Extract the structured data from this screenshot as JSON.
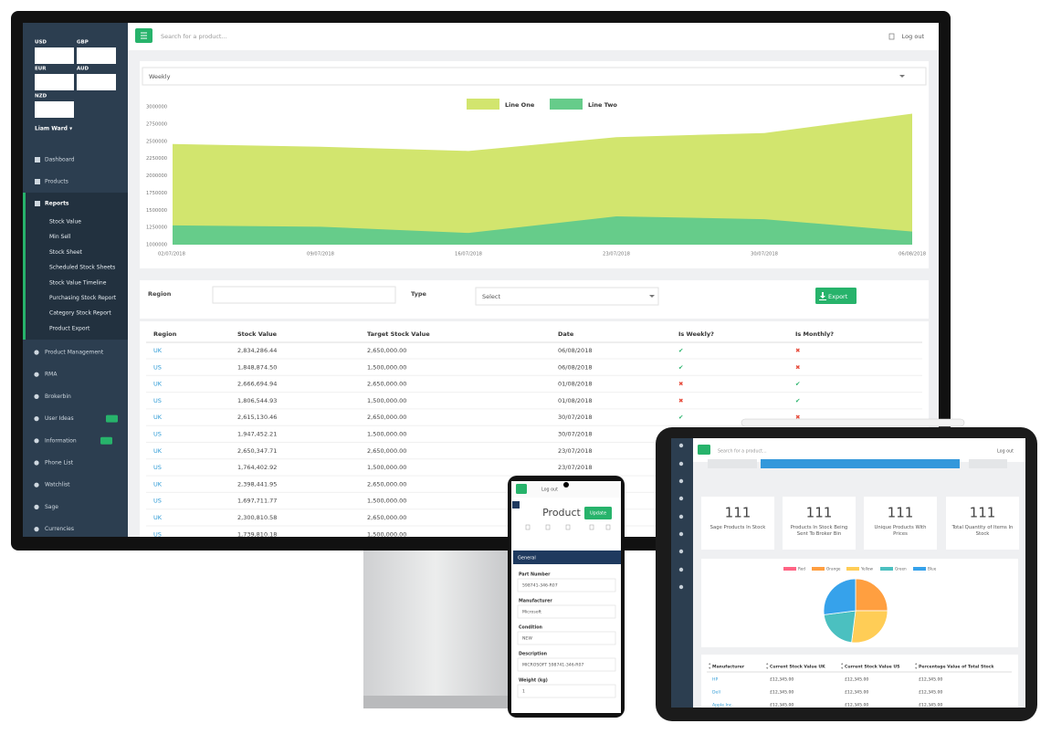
{
  "desktop": {
    "currencies": [
      "USD",
      "GBP",
      "EUR",
      "AUD",
      "NZD"
    ],
    "user": "Liam Ward ▾",
    "menu": [
      "Dashboard",
      "Products",
      "Reports"
    ],
    "reports_menu": [
      "Stock Value",
      "Min Sell",
      "Stock Sheet",
      "Scheduled Stock Sheets",
      "Stock Value Timeline",
      "Purchasing Stock Report",
      "Category Stock Report",
      "Product Export"
    ],
    "menu_more": [
      "Product Management",
      "RMA",
      "Brokerbin",
      "User Ideas",
      "Information",
      "Phone List",
      "Watchlist",
      "Sage",
      "Currencies"
    ],
    "search": "Search for a product...",
    "logout": "Log out",
    "period": "Weekly",
    "filters": {
      "region": "Region",
      "type": "Type",
      "select": "Select",
      "export": "Export"
    },
    "table": {
      "headers": [
        "Region",
        "Stock Value",
        "Target Stock Value",
        "Date",
        "Is Weekly?",
        "Is Monthly?"
      ],
      "status_colors": {
        "✔": "#27b36b",
        "✖": "#e74c3c"
      },
      "rows": [
        [
          "UK",
          "2,834,286.44",
          "2,650,000.00",
          "06/08/2018",
          "✔",
          "✖"
        ],
        [
          "US",
          "1,848,874.50",
          "1,500,000.00",
          "06/08/2018",
          "✔",
          "✖"
        ],
        [
          "UK",
          "2,666,694.94",
          "2,650,000.00",
          "01/08/2018",
          "✖",
          "✔"
        ],
        [
          "US",
          "1,806,544.93",
          "1,500,000.00",
          "01/08/2018",
          "✖",
          "✔"
        ],
        [
          "UK",
          "2,615,130.46",
          "2,650,000.00",
          "30/07/2018",
          "✔",
          "✖"
        ],
        [
          "US",
          "1,947,452.21",
          "1,500,000.00",
          "30/07/2018"
        ],
        [
          "UK",
          "2,650,347.71",
          "2,650,000.00",
          "23/07/2018"
        ],
        [
          "US",
          "1,764,402.92",
          "1,500,000.00",
          "23/07/2018"
        ],
        [
          "UK",
          "2,398,441.95",
          "2,650,000.00"
        ],
        [
          "US",
          "1,697,711.77",
          "1,500,000.00"
        ],
        [
          "UK",
          "2,300,810.58",
          "2,650,000.00"
        ],
        [
          "US",
          "1,739,810.18",
          "1,500,000.00"
        ]
      ]
    }
  },
  "chart_data": [
    {
      "type": "area",
      "categories": [
        "02/07/2018",
        "09/07/2018",
        "16/07/2018",
        "23/07/2018",
        "30/07/2018",
        "06/08/2018"
      ],
      "series": [
        {
          "name": "Line One",
          "color": "#d2e56e",
          "values": [
            2460000,
            2420000,
            2360000,
            2560000,
            2620000,
            2900000
          ]
        },
        {
          "name": "Line Two",
          "color": "#66cc8a",
          "values": [
            1280000,
            1260000,
            1170000,
            1410000,
            1370000,
            1190000
          ]
        }
      ],
      "ylim": [
        1000000,
        3000000
      ],
      "yticks": [
        1000000,
        1250000,
        1500000,
        1750000,
        2000000,
        2250000,
        2500000,
        2750000,
        3000000
      ],
      "grid": false,
      "legend": "top"
    },
    {
      "type": "pie",
      "categories": [
        "Red",
        "Orange",
        "Yellow",
        "Green",
        "Blue"
      ],
      "values": [
        0,
        25,
        27,
        21,
        27
      ],
      "colors": [
        "#ff6384",
        "#ff9f40",
        "#ffcd56",
        "#4bc0c0",
        "#36a2eb"
      ],
      "legend": "top"
    }
  ],
  "tablet": {
    "search": "Search for a product...",
    "logout": "Log out",
    "stats": [
      {
        "value": "111",
        "label": "Sage Products In Stock"
      },
      {
        "value": "111",
        "label": "Products In Stock Being Sent To Broker Bin"
      },
      {
        "value": "111",
        "label": "Unique Products With Prices"
      },
      {
        "value": "111",
        "label": "Total Quantity of Items In Stock"
      }
    ],
    "table": {
      "headers": [
        "Manufacturer",
        "Current Stock Value UK",
        "Current Stock Value US",
        "Percentage Value of Total Stock"
      ],
      "rows": [
        [
          "HP",
          "£12,345.00",
          "£12,345.00",
          "£12,345.00"
        ],
        [
          "Dell",
          "£12,345.00",
          "£12,345.00",
          "£12,345.00"
        ],
        [
          "Apple Inc.",
          "£12,345.00",
          "£12,345.00",
          "£12,345.00"
        ]
      ]
    }
  },
  "phone": {
    "logout": "Log out",
    "title": "Product",
    "update": "Update",
    "section": "General",
    "fields": [
      {
        "label": "Part Number",
        "value": "598741-346-R07"
      },
      {
        "label": "Manufacturer",
        "value": "Microsoft"
      },
      {
        "label": "Condition",
        "value": "NEW"
      },
      {
        "label": "Description",
        "value": "MICROSOFT 598741-346-R07"
      },
      {
        "label": "Weight (kg)",
        "value": "1"
      }
    ]
  }
}
